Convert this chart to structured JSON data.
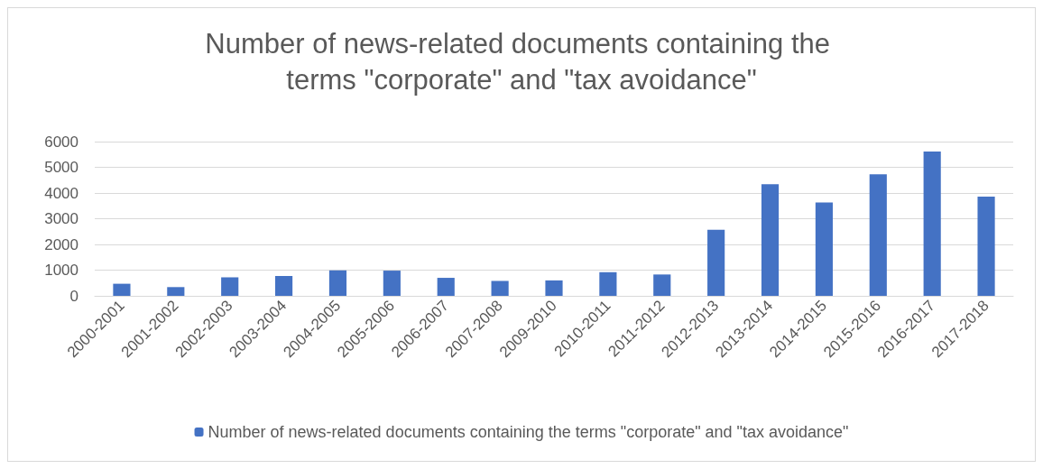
{
  "chart_data": {
    "type": "bar",
    "title": "Number of news-related documents containing the terms \"corporate\" and \"tax avoidance\"",
    "categories": [
      "2000-2001",
      "2001-2002",
      "2002-2003",
      "2003-2004",
      "2004-2005",
      "2005-2006",
      "2006-2007",
      "2007-2008",
      "2009-2010",
      "2010-2011",
      "2011-2012",
      "2012-2013",
      "2013-2014",
      "2014-2015",
      "2015-2016",
      "2016-2017",
      "2017-2018"
    ],
    "series": [
      {
        "name": "Number of news-related documents containing the terms \"corporate\" and \"tax avoidance\"",
        "color": "#4472c4",
        "values": [
          470,
          340,
          720,
          770,
          990,
          980,
          700,
          580,
          600,
          920,
          830,
          2570,
          4340,
          3630,
          4730,
          5610,
          3860
        ]
      }
    ],
    "ylim": [
      0,
      6000
    ],
    "yticks": [
      0,
      1000,
      2000,
      3000,
      4000,
      5000,
      6000
    ],
    "grid": "y",
    "legend": "bottom"
  }
}
